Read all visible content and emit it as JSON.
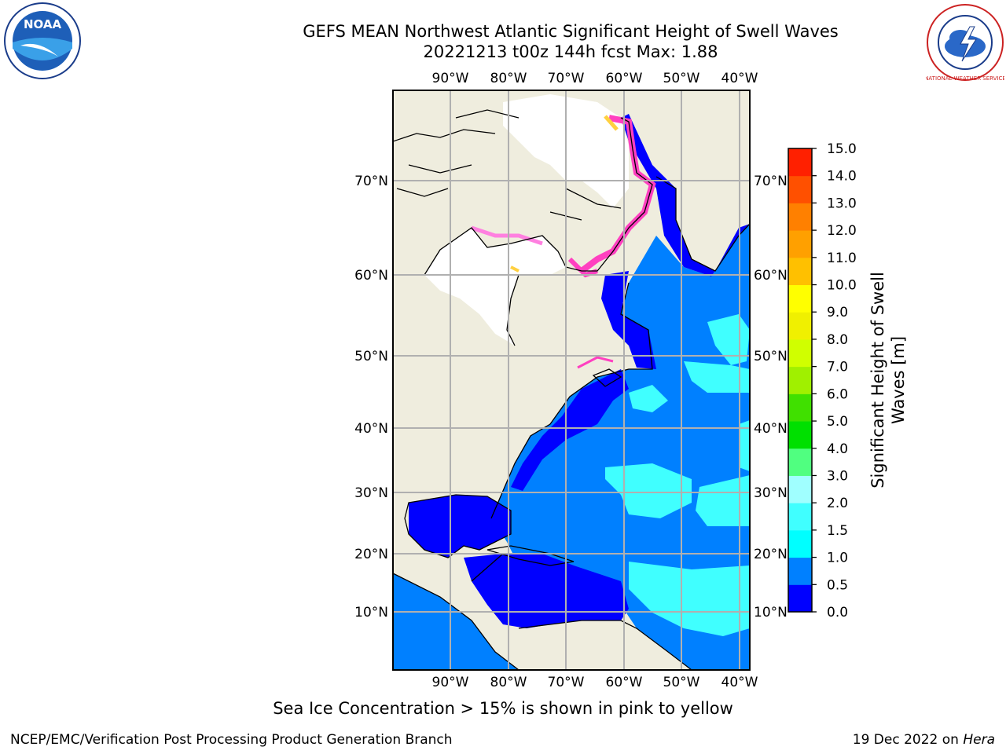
{
  "title_line1": "GEFS MEAN Northwest Atlantic Significant Height of Swell Waves",
  "title_line2": "20221213 t00z 144h fcst   Max: 1.88",
  "logos": {
    "left": "NOAA",
    "right": "NATIONAL WEATHER SERVICE"
  },
  "map": {
    "lon_labels": [
      "90°W",
      "80°W",
      "70°W",
      "60°W",
      "50°W",
      "40°W"
    ],
    "lat_labels": [
      "70°N",
      "60°N",
      "50°N",
      "40°N",
      "30°N",
      "20°N",
      "10°N"
    ]
  },
  "colorbar": {
    "label_line1": "Significant Height of Swell",
    "label_line2": "Waves [m]",
    "ticks": [
      "0.0",
      "0.5",
      "1.0",
      "1.5",
      "2.0",
      "3.0",
      "4.0",
      "5.0",
      "6.0",
      "7.0",
      "8.0",
      "9.0",
      "10.0",
      "11.0",
      "12.0",
      "13.0",
      "14.0",
      "15.0"
    ],
    "colors": [
      "#0000ff",
      "#0080ff",
      "#00ffff",
      "#40ffff",
      "#a0ffff",
      "#50ff80",
      "#00e000",
      "#40e000",
      "#a0f000",
      "#d0ff00",
      "#f0f000",
      "#ffff00",
      "#ffc000",
      "#ffa000",
      "#ff8000",
      "#ff5000",
      "#ff2000"
    ]
  },
  "caption": "Sea Ice Concentration > 15% is shown in pink to yellow",
  "footer_left": "NCEP/EMC/Verification Post Processing Product Generation Branch",
  "footer_right_date": "19 Dec 2022 on ",
  "footer_right_machine": "Hera"
}
